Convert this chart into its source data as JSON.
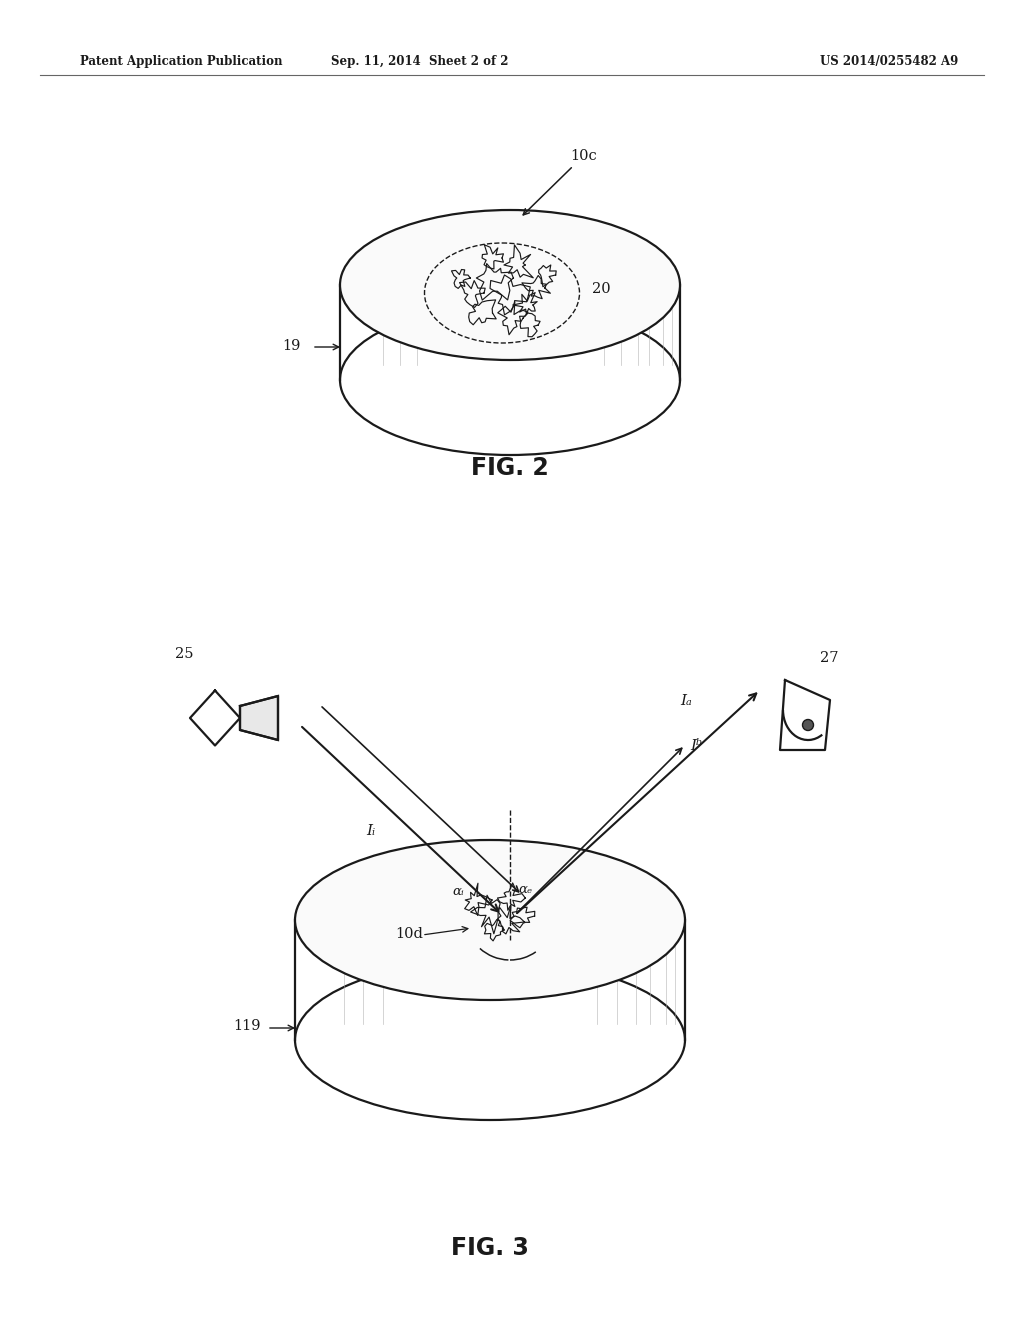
{
  "bg_color": "#ffffff",
  "header_left": "Patent Application Publication",
  "header_center": "Sep. 11, 2014  Sheet 2 of 2",
  "header_right": "US 2014/0255482 A9",
  "fig2_label": "FIG. 2",
  "fig3_label": "FIG. 3",
  "fig2_ref_10c": "10c",
  "fig2_ref_19": "19",
  "fig2_ref_20": "20",
  "fig3_ref_25": "25",
  "fig3_ref_27": "27",
  "fig3_ref_10d": "10d",
  "fig3_ref_119": "119",
  "fig3_ref_Ii": "Iᵢ",
  "fig3_ref_Ia": "Iₐ",
  "fig3_ref_Ib": "Iᵇ",
  "fig3_ref_ai": "αᵢ",
  "fig3_ref_ae": "αₑ",
  "lw_main": 1.6,
  "color_line": "#1a1a1a"
}
